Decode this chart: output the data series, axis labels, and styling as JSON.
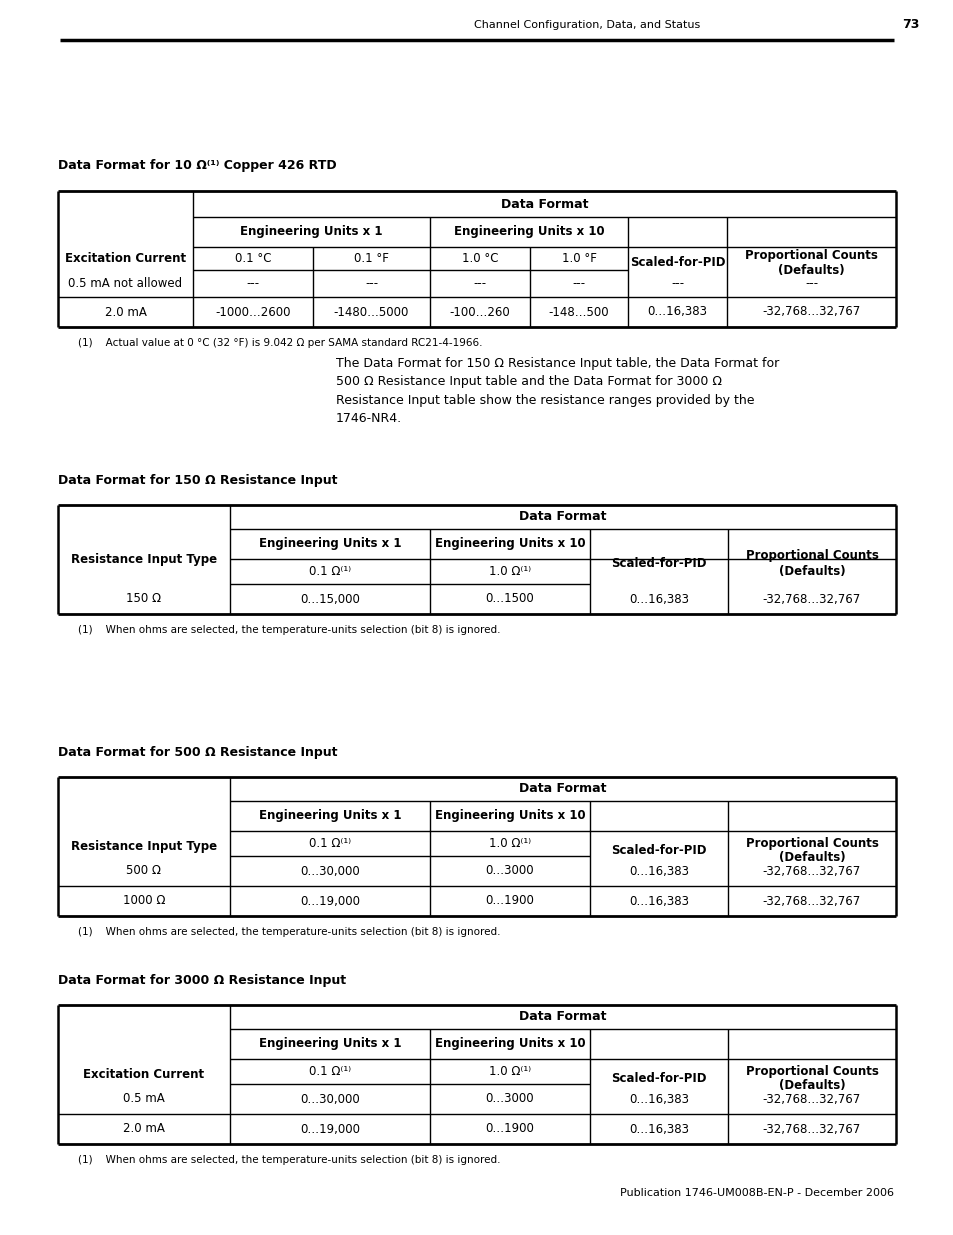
{
  "page_header_text": "Channel Configuration, Data, and Status",
  "page_number": "73",
  "footer_text": "Publication 1746-UM008B-EN-P - December 2006",
  "table1_title": "Data Format for 10 Ω⁽¹⁾ Copper 426 RTD",
  "table1_footnote": "(1)    Actual value at 0 °C (32 °F) is 9.042 Ω per SAMA standard RC21-4-1966.",
  "middle_text": "The Data Format for 150 Ω Resistance Input table, the Data Format for\n500 Ω Resistance Input table and the Data Format for 3000 Ω\nResistance Input table show the resistance ranges provided by the\n1746-NR4.",
  "table2_title": "Data Format for 150 Ω Resistance Input",
  "table2_footnote": "(1)    When ohms are selected, the temperature-units selection (bit 8) is ignored.",
  "table3_title": "Data Format for 500 Ω Resistance Input",
  "table3_footnote": "(1)    When ohms are selected, the temperature-units selection (bit 8) is ignored.",
  "table4_title": "Data Format for 3000 Ω Resistance Input",
  "table4_footnote": "(1)    When ohms are selected, the temperature-units selection (bit 8) is ignored.",
  "table3_data": [
    [
      "500 Ω",
      "0…30,000",
      "0…3000",
      "0…16,383",
      "-32,768…32,767"
    ],
    [
      "1000 Ω",
      "0…19,000",
      "0…1900",
      "0…16,383",
      "-32,768…32,767"
    ]
  ],
  "table4_data": [
    [
      "0.5 mA",
      "0…30,000",
      "0…3000",
      "0…16,383",
      "-32,768…32,767"
    ],
    [
      "2.0 mA",
      "0…19,000",
      "0…1900",
      "0…16,383",
      "-32,768…32,767"
    ]
  ]
}
